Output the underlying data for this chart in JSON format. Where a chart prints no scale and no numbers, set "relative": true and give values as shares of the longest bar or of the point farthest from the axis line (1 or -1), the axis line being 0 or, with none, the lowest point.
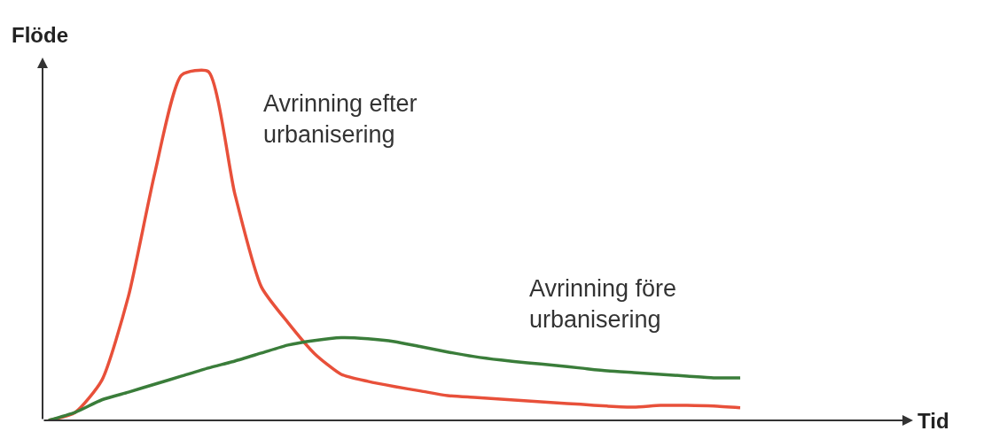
{
  "chart_data": {
    "type": "line",
    "relative": true,
    "annotations": [
      "Tid"
    ],
    "ylabel": "Flöde",
    "legend": false,
    "marker": "none",
    "line_style": "solid",
    "categories": [
      null,
      null,
      null,
      null,
      null,
      null,
      null,
      null,
      null,
      null,
      null,
      null,
      null,
      null,
      null,
      null,
      null,
      null,
      null,
      null,
      null,
      null,
      null,
      null,
      null,
      null,
      null
    ],
    "series": [
      {
        "name": "Avrinning efter urbanisering",
        "color": "#e8503a",
        "values": [
          0,
          0.023,
          0.115,
          0.356,
          0.712,
          0.99,
          1,
          0.649,
          0.382,
          0.28,
          0.191,
          0.132,
          0.112,
          0.097,
          0.084,
          0.071,
          0.066,
          0.061,
          0.056,
          0.051,
          0.046,
          0.041,
          0.038,
          0.043,
          0.043,
          0.041,
          0.036
        ]
      },
      {
        "name": "Avrinning före urbanisering",
        "color": "#3a7d3a",
        "values": [
          0,
          0.023,
          0.059,
          0.081,
          0.104,
          0.127,
          0.15,
          0.17,
          0.193,
          0.216,
          0.229,
          0.237,
          0.234,
          0.226,
          0.211,
          0.196,
          0.183,
          0.173,
          0.165,
          0.158,
          0.15,
          0.142,
          0.137,
          0.132,
          0.127,
          0.122,
          0.122
        ]
      }
    ]
  }
}
